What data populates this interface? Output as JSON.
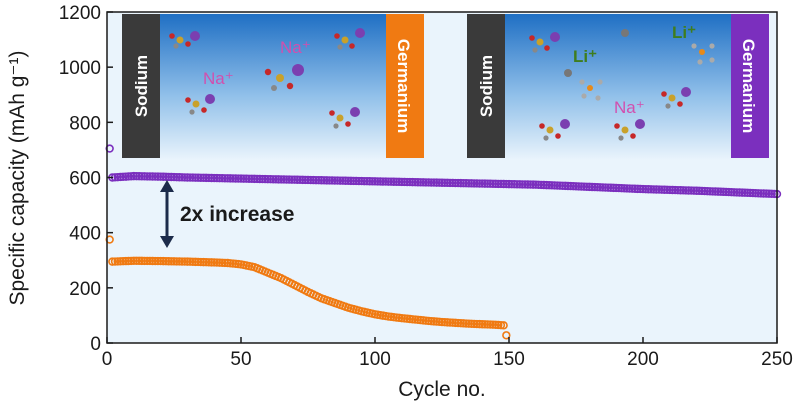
{
  "chart_data": {
    "type": "scatter",
    "xlabel": "Cycle no.",
    "ylabel": "Specific capacity (mAh g⁻¹)",
    "xlim": [
      0,
      250
    ],
    "ylim": [
      0,
      1200
    ],
    "xticks": [
      "0",
      "50",
      "100",
      "150",
      "200",
      "250"
    ],
    "yticks": [
      "0",
      "200",
      "400",
      "600",
      "800",
      "1000",
      "1200"
    ],
    "grid": false,
    "colors": {
      "purple": "#7b2fbe",
      "orange": "#f07a12",
      "plot_bg": "#eaf4fc"
    },
    "series": [
      {
        "color": "#7b2fbe",
        "first_point": {
          "x": 1,
          "y": 705
        },
        "x": [
          2,
          10,
          20,
          30,
          40,
          50,
          60,
          70,
          80,
          90,
          100,
          110,
          120,
          130,
          140,
          150,
          160,
          170,
          180,
          190,
          200,
          210,
          220,
          230,
          240,
          250
        ],
        "y": [
          600,
          605,
          603,
          600,
          598,
          596,
          594,
          592,
          590,
          588,
          586,
          584,
          582,
          580,
          578,
          576,
          574,
          570,
          566,
          562,
          558,
          555,
          552,
          548,
          544,
          540
        ]
      },
      {
        "color": "#f07a12",
        "first_point": {
          "x": 1,
          "y": 375
        },
        "x": [
          2,
          10,
          20,
          30,
          40,
          45,
          50,
          55,
          60,
          65,
          70,
          75,
          80,
          85,
          90,
          95,
          100,
          105,
          110,
          115,
          120,
          125,
          130,
          135,
          140,
          145,
          148
        ],
        "y": [
          295,
          298,
          297,
          295,
          292,
          290,
          285,
          275,
          255,
          235,
          210,
          185,
          162,
          145,
          128,
          115,
          104,
          96,
          90,
          85,
          80,
          76,
          73,
          70,
          68,
          66,
          64
        ],
        "last_point": {
          "x": 149,
          "y": 28
        }
      }
    ],
    "annotations": {
      "increase": "2x increase",
      "panel_left": {
        "left_electrode": "Sodium",
        "right_electrode": "Germanium",
        "ions": [
          "Na⁺",
          "Na⁺"
        ]
      },
      "panel_right": {
        "left_electrode": "Sodium",
        "right_electrode": "Germanium",
        "ions": [
          "Li⁺",
          "Li⁺",
          "Na⁺"
        ]
      }
    }
  }
}
